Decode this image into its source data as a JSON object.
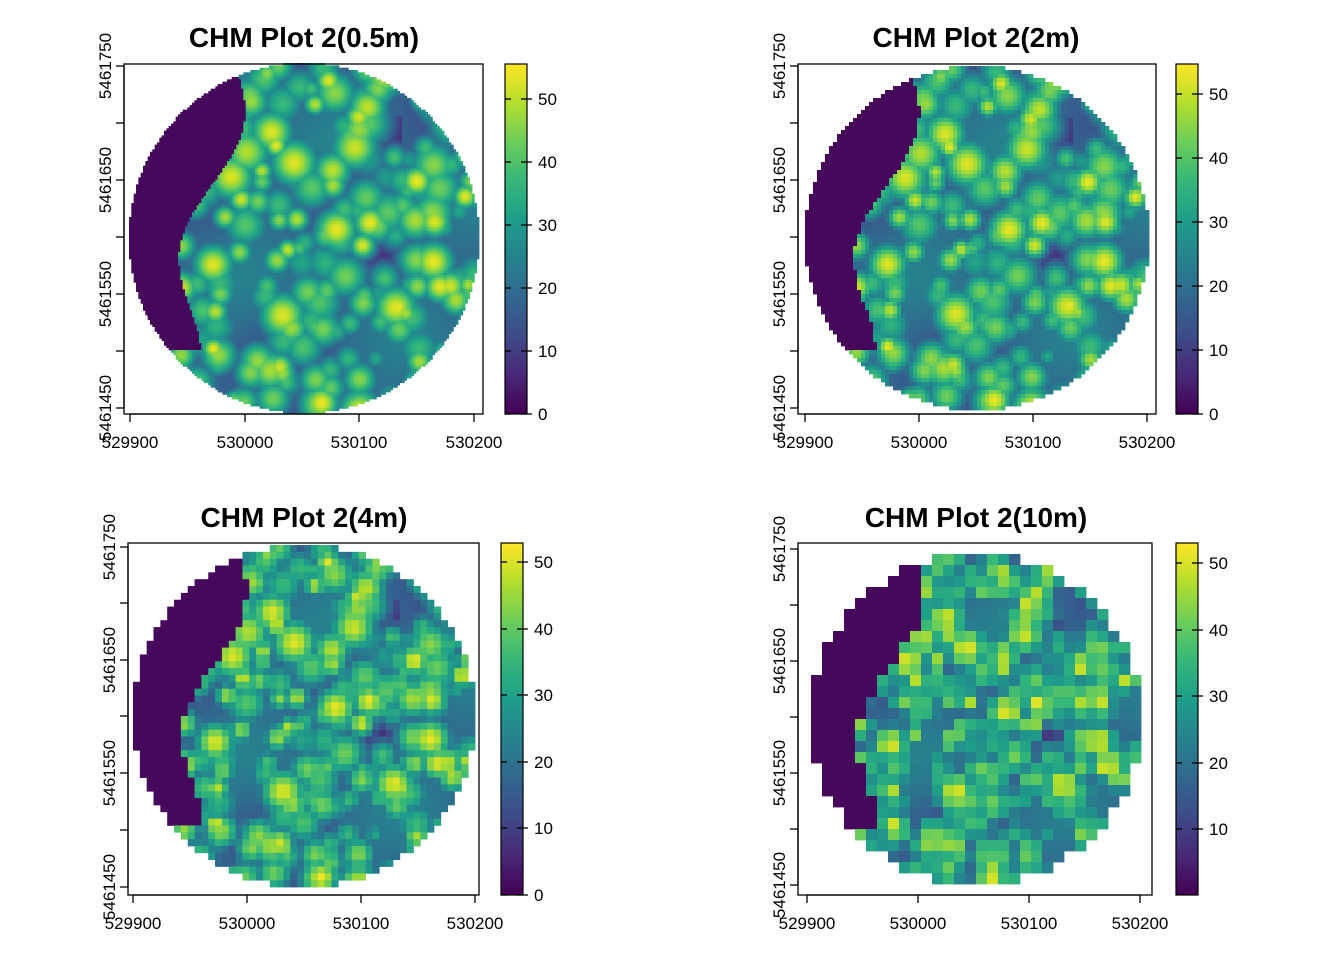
{
  "chart_data": [
    {
      "type": "heatmap",
      "title": "CHM Plot 2(0.5m)",
      "xlabel": "",
      "ylabel": "",
      "x_ticks": [
        529900,
        530000,
        530100,
        530200
      ],
      "x_tick_labels": [
        "529900",
        "530000",
        "530100",
        "530200"
      ],
      "y_ticks": [
        5461450,
        5461550,
        5461650,
        5461750
      ],
      "y_tick_labels": [
        "5461450",
        "5461550",
        "5461650",
        "5461750"
      ],
      "xlim": [
        529895,
        530205
      ],
      "ylim": [
        5461440,
        5461752
      ],
      "legend": {
        "position": "right",
        "ticks": [
          0,
          10,
          20,
          30,
          40,
          50
        ],
        "tick_labels": [
          "0",
          "10",
          "20",
          "30",
          "40",
          "50"
        ],
        "range": [
          0,
          55.5
        ]
      },
      "value_range": [
        0,
        55.5
      ],
      "resolution_m": 0.5,
      "grid": false
    },
    {
      "type": "heatmap",
      "title": "CHM Plot 2(2m)",
      "xlabel": "",
      "ylabel": "",
      "x_ticks": [
        529900,
        530000,
        530100,
        530200
      ],
      "x_tick_labels": [
        "529900",
        "530000",
        "530100",
        "530200"
      ],
      "y_ticks": [
        5461450,
        5461550,
        5461650,
        5461750
      ],
      "y_tick_labels": [
        "5461450",
        "5461550",
        "5461650",
        "5461750"
      ],
      "xlim": [
        529895,
        530205
      ],
      "ylim": [
        5461440,
        5461752
      ],
      "legend": {
        "position": "right",
        "ticks": [
          0,
          10,
          20,
          30,
          40,
          50
        ],
        "tick_labels": [
          "0",
          "10",
          "20",
          "30",
          "40",
          "50"
        ],
        "range": [
          0,
          55
        ]
      },
      "value_range": [
        0,
        55
      ],
      "resolution_m": 2,
      "grid": false
    },
    {
      "type": "heatmap",
      "title": "CHM Plot 2(4m)",
      "xlabel": "",
      "ylabel": "",
      "x_ticks": [
        529900,
        530000,
        530100,
        530200
      ],
      "x_tick_labels": [
        "529900",
        "530000",
        "530100",
        "530200"
      ],
      "y_ticks": [
        5461450,
        5461550,
        5461650,
        5461750
      ],
      "y_tick_labels": [
        "5461450",
        "5461550",
        "5461650",
        "5461750"
      ],
      "xlim": [
        529895,
        530205
      ],
      "ylim": [
        5461440,
        5461752
      ],
      "legend": {
        "position": "right",
        "ticks": [
          0,
          10,
          20,
          30,
          40,
          50
        ],
        "tick_labels": [
          "0",
          "10",
          "20",
          "30",
          "40",
          "50"
        ],
        "range": [
          0,
          53
        ]
      },
      "value_range": [
        0,
        53
      ],
      "resolution_m": 4,
      "grid": false
    },
    {
      "type": "heatmap",
      "title": "CHM Plot 2(10m)",
      "xlabel": "",
      "ylabel": "",
      "x_ticks": [
        529900,
        530000,
        530100,
        530200
      ],
      "x_tick_labels": [
        "529900",
        "530000",
        "530100",
        "530200"
      ],
      "y_ticks": [
        5461450,
        5461550,
        5461650,
        5461750
      ],
      "y_tick_labels": [
        "5461450",
        "5461550",
        "5461650",
        "5461750"
      ],
      "xlim": [
        529895,
        530205
      ],
      "ylim": [
        5461440,
        5461752
      ],
      "legend": {
        "position": "right",
        "ticks": [
          10,
          20,
          30,
          40,
          50
        ],
        "tick_labels": [
          "10",
          "20",
          "30",
          "40",
          "50"
        ],
        "range": [
          0,
          53
        ]
      },
      "value_range": [
        0,
        53
      ],
      "resolution_m": 10,
      "grid": false
    }
  ],
  "colormap": {
    "name": "viridis",
    "stops": [
      "#440154",
      "#482878",
      "#3E4A89",
      "#31688E",
      "#26828E",
      "#1F9E89",
      "#35B779",
      "#6DCD59",
      "#B4DE2C",
      "#FDE725"
    ]
  }
}
